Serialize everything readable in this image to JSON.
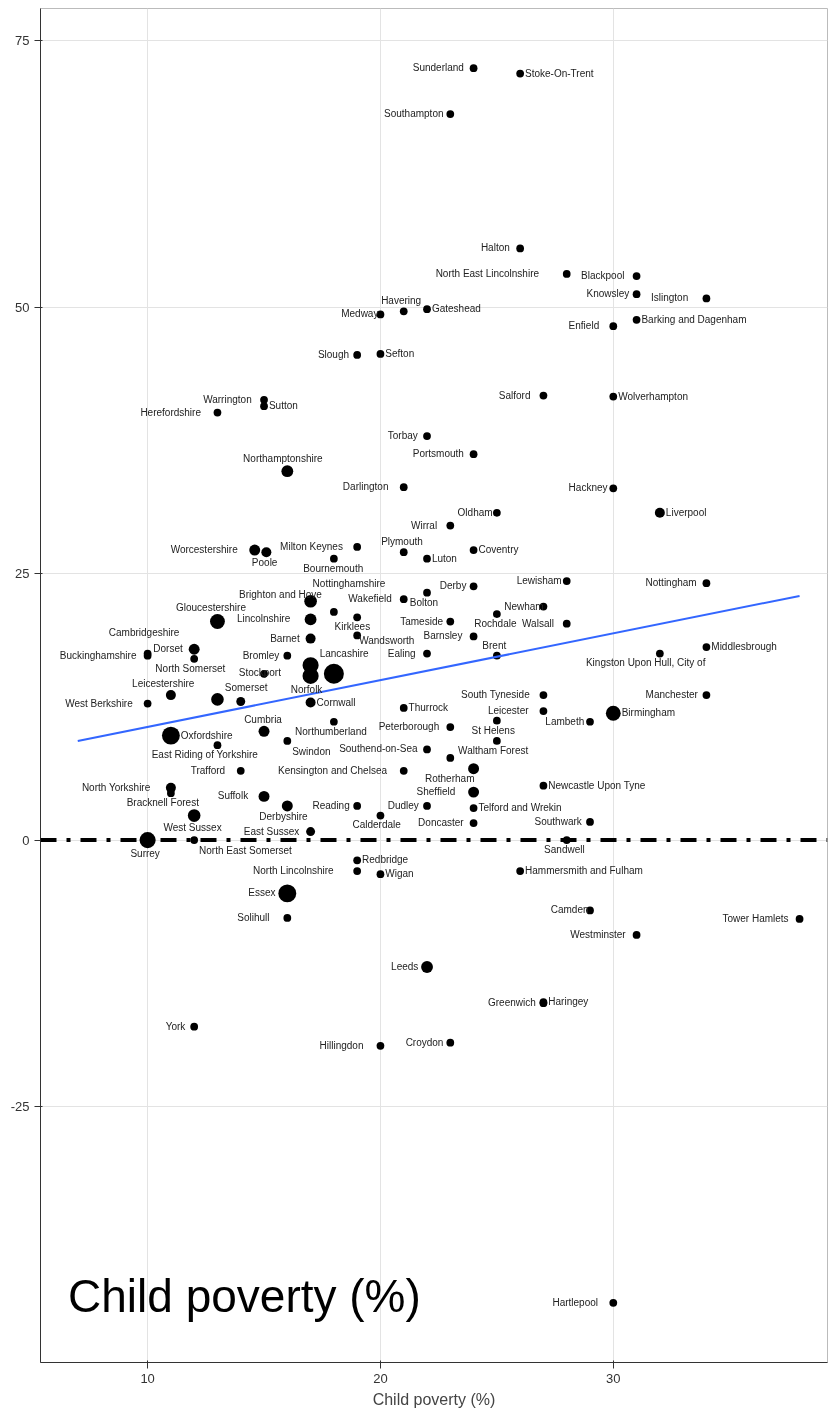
{
  "chart_data": {
    "type": "bubble",
    "xlabel": "Child poverty (%)",
    "xlim": [
      5.4,
      39.2
    ],
    "ylim": [
      -49,
      78
    ],
    "xticks": [
      10,
      20,
      30
    ],
    "yticks": [
      -25,
      0,
      25,
      50,
      75
    ],
    "grid": true,
    "series": [
      {
        "color": "#000000",
        "marker": "circle",
        "x": [
          24,
          26,
          23,
          26,
          28,
          31,
          31,
          34,
          31,
          30,
          22,
          20,
          21,
          19,
          20,
          15,
          15,
          13,
          27,
          30,
          22,
          24,
          16,
          21,
          30,
          32,
          25,
          23,
          24,
          22,
          21,
          19,
          18,
          14.6,
          15.1,
          28,
          34,
          24,
          22,
          21,
          27,
          25,
          23,
          28,
          24,
          22,
          25,
          32,
          34,
          27,
          34,
          30,
          27,
          29,
          25,
          23,
          25,
          22,
          23,
          24,
          27,
          24,
          24,
          22,
          24,
          29,
          28,
          10,
          11,
          13,
          14,
          17,
          21,
          18,
          11,
          13,
          15,
          16,
          14,
          21,
          11,
          11,
          12,
          15,
          16,
          19,
          20,
          17,
          10,
          12,
          12,
          10,
          10,
          12,
          16,
          15,
          17,
          17,
          18,
          13,
          17,
          18,
          19,
          17,
          19,
          17,
          19,
          19,
          20,
          26,
          16,
          16,
          29,
          38,
          31,
          22,
          27,
          27,
          12,
          20,
          23,
          30
        ],
        "values": [
          72.4,
          71.9,
          68.1,
          55.5,
          53.1,
          52.9,
          51.2,
          50.8,
          48.8,
          48.2,
          49.8,
          49.3,
          49.6,
          45.5,
          45.6,
          41.3,
          40.7,
          40.1,
          41.7,
          41.6,
          37.9,
          36.2,
          34.6,
          33.1,
          33.0,
          30.7,
          30.7,
          29.5,
          27.2,
          26.4,
          27.0,
          27.5,
          26.4,
          27.2,
          27.0,
          24.3,
          24.1,
          23.8,
          23.2,
          22.6,
          21.9,
          21.2,
          20.5,
          20.3,
          19.1,
          17.5,
          17.3,
          17.5,
          18.1,
          13.6,
          13.6,
          11.9,
          12.1,
          11.1,
          11.2,
          10.6,
          9.3,
          8.5,
          7.7,
          6.7,
          5.1,
          4.5,
          3.0,
          3.2,
          1.6,
          1.7,
          0,
          12.8,
          13.6,
          13.2,
          13.0,
          12.9,
          12.4,
          11.1,
          9.8,
          8.9,
          10.2,
          9.3,
          6.5,
          6.5,
          4.9,
          4.4,
          2.3,
          4.1,
          3.2,
          3.2,
          2.3,
          0.8,
          0,
          0,
          17.9,
          17.3,
          17.5,
          17.0,
          17.3,
          15.6,
          16.4,
          15.4,
          15.6,
          20.5,
          20.7,
          21.4,
          20.9,
          22.4,
          19.2,
          18.9,
          -1.9,
          -2.9,
          -3.2,
          -2.9,
          -5.0,
          -7.3,
          -6.6,
          -7.4,
          -8.9,
          -11.9,
          -15.3,
          -15.2,
          -17.5,
          -19.3,
          -19.0,
          -43.4
        ],
        "sizes": [
          0.15,
          0.15,
          0.15,
          0.15,
          0.15,
          0.15,
          0.15,
          0.15,
          0.15,
          0.15,
          0.15,
          0.15,
          0.15,
          0.15,
          0.15,
          0.15,
          0.15,
          0.15,
          0.15,
          0.15,
          0.15,
          0.15,
          0.35,
          0.15,
          0.15,
          0.25,
          0.15,
          0.15,
          0.15,
          0.15,
          0.15,
          0.15,
          0.15,
          0.3,
          0.25,
          0.15,
          0.15,
          0.15,
          0.15,
          0.15,
          0.15,
          0.15,
          0.15,
          0.15,
          0.15,
          0.15,
          0.15,
          0.15,
          0.15,
          0.15,
          0.15,
          0.55,
          0.15,
          0.15,
          0.15,
          0.15,
          0.15,
          0.15,
          0.15,
          0.3,
          0.15,
          0.3,
          0.15,
          0.15,
          0.15,
          0.15,
          0.15,
          0.15,
          0.25,
          0.4,
          0.2,
          0.25,
          0.15,
          0.15,
          0.8,
          0.15,
          0.3,
          0.15,
          0.15,
          0.15,
          0.25,
          0.15,
          0.4,
          0.3,
          0.3,
          0.15,
          0.15,
          0.2,
          0.65,
          0.15,
          0.3,
          0.15,
          0.15,
          0.15,
          0.15,
          0.15,
          0.65,
          0.65,
          1,
          0.55,
          0.35,
          0.15,
          0.15,
          0.4,
          0.15,
          0.25,
          0.15,
          0.15,
          0.15,
          0.15,
          0.8,
          0.15,
          0.15,
          0.15,
          0.15,
          0.35,
          0.15,
          0.15,
          0.15,
          0.15,
          0.15,
          0.15
        ]
      },
      {
        "type": "line",
        "color": "#3366ff",
        "x": [
          7,
          38
        ],
        "values": [
          9.3,
          22.9
        ]
      }
    ],
    "ref_lines": [
      {
        "axis": "y",
        "value": 0,
        "color": "#000000",
        "line_style": "dashed"
      }
    ],
    "annotations": [
      {
        "text": "Sunderland",
        "x": 24,
        "y": 72.4
      },
      {
        "text": "Stoke-On-Trent",
        "x": 26,
        "y": 71.9
      },
      {
        "text": "Southampton",
        "x": 23,
        "y": 68.1
      },
      {
        "text": "Halton",
        "x": 26,
        "y": 55.5
      },
      {
        "text": "North East Lincolnshire",
        "x": 28,
        "y": 53.1
      },
      {
        "text": "Blackpool",
        "x": 31,
        "y": 52.9
      },
      {
        "text": "Knowsley",
        "x": 31,
        "y": 51.2
      },
      {
        "text": "Islington",
        "x": 34,
        "y": 50.8
      },
      {
        "text": "Barking and Dagenham",
        "x": 31,
        "y": 48.8
      },
      {
        "text": "Enfield",
        "x": 30,
        "y": 48.2
      },
      {
        "text": "Gateshead",
        "x": 22,
        "y": 49.8
      },
      {
        "text": "Medway",
        "x": 20,
        "y": 49.3
      },
      {
        "text": "Havering",
        "x": 21,
        "y": 49.6
      },
      {
        "text": "Slough",
        "x": 19,
        "y": 45.5
      },
      {
        "text": "Sefton",
        "x": 20,
        "y": 45.6
      },
      {
        "text": "Warrington",
        "x": 15,
        "y": 41.3
      },
      {
        "text": "Sutton",
        "x": 15,
        "y": 40.7
      },
      {
        "text": "Herefordshire",
        "x": 13,
        "y": 40.1
      },
      {
        "text": "Salford",
        "x": 27,
        "y": 41.7
      },
      {
        "text": "Wolverhampton",
        "x": 30,
        "y": 41.6
      },
      {
        "text": "Torbay",
        "x": 22,
        "y": 37.9
      },
      {
        "text": "Portsmouth",
        "x": 24,
        "y": 36.2
      },
      {
        "text": "Northamptonshire",
        "x": 16,
        "y": 34.6
      },
      {
        "text": "Darlington",
        "x": 21,
        "y": 33.1
      },
      {
        "text": "Hackney",
        "x": 30,
        "y": 33.0
      },
      {
        "text": "Liverpool",
        "x": 32,
        "y": 30.7
      },
      {
        "text": "Oldham",
        "x": 25,
        "y": 30.7
      },
      {
        "text": "Wirral",
        "x": 23,
        "y": 29.5
      },
      {
        "text": "Coventry",
        "x": 24,
        "y": 27.2
      },
      {
        "text": "Luton",
        "x": 22,
        "y": 26.4
      },
      {
        "text": "Plymouth",
        "x": 21,
        "y": 27.0
      },
      {
        "text": "Milton Keynes",
        "x": 19,
        "y": 27.5
      },
      {
        "text": "Bournemouth",
        "x": 18,
        "y": 26.4
      },
      {
        "text": "Worcestershire",
        "x": 14.6,
        "y": 27.2
      },
      {
        "text": "Poole",
        "x": 15.1,
        "y": 27.0
      },
      {
        "text": "Lewisham",
        "x": 28,
        "y": 24.3
      },
      {
        "text": "Nottingham",
        "x": 34,
        "y": 24.1
      },
      {
        "text": "Derby",
        "x": 24,
        "y": 23.8
      },
      {
        "text": "Bolton",
        "x": 22,
        "y": 23.2
      },
      {
        "text": "Wakefield",
        "x": 21,
        "y": 22.6
      },
      {
        "text": "Newham",
        "x": 27,
        "y": 21.9
      },
      {
        "text": "Rochdale",
        "x": 25,
        "y": 21.2
      },
      {
        "text": "Tameside",
        "x": 23,
        "y": 20.5
      },
      {
        "text": "Walsall",
        "x": 28,
        "y": 20.3
      },
      {
        "text": "Barnsley",
        "x": 24,
        "y": 19.1
      },
      {
        "text": "Ealing",
        "x": 22,
        "y": 17.5
      },
      {
        "text": "Brent",
        "x": 25,
        "y": 17.3
      },
      {
        "text": "Kingston Upon Hull, City of",
        "x": 32,
        "y": 17.5
      },
      {
        "text": "Middlesbrough",
        "x": 34,
        "y": 18.1
      },
      {
        "text": "South Tyneside",
        "x": 27,
        "y": 13.6
      },
      {
        "text": "Manchester",
        "x": 34,
        "y": 13.6
      },
      {
        "text": "Birmingham",
        "x": 30,
        "y": 11.9
      },
      {
        "text": "Leicester",
        "x": 27,
        "y": 12.1
      },
      {
        "text": "Lambeth",
        "x": 29,
        "y": 11.1
      },
      {
        "text": "St Helens",
        "x": 25,
        "y": 11.2
      },
      {
        "text": "Peterborough",
        "x": 23,
        "y": 10.6
      },
      {
        "text": "Waltham Forest",
        "x": 25,
        "y": 9.3
      },
      {
        "text": "Southend-on-Sea",
        "x": 22,
        "y": 8.5
      },
      {
        "text": "Rotherham",
        "x": 23,
        "y": 7.7
      },
      {
        "text": "Newcastle Upon Tyne",
        "x": 27,
        "y": 5.1
      },
      {
        "text": "Sheffield",
        "x": 24,
        "y": 4.5
      },
      {
        "text": "Telford and Wrekin",
        "x": 24,
        "y": 3.0
      },
      {
        "text": "Dudley",
        "x": 22,
        "y": 3.2
      },
      {
        "text": "Doncaster",
        "x": 24,
        "y": 1.6
      },
      {
        "text": "Southwark",
        "x": 29,
        "y": 1.7
      },
      {
        "text": "Sandwell",
        "x": 28,
        "y": 0
      },
      {
        "text": "West Berkshire",
        "x": 10,
        "y": 12.8
      },
      {
        "text": "Leicestershire",
        "x": 11,
        "y": 13.6
      },
      {
        "text": "Somerset",
        "x": 13,
        "y": 13.2
      },
      {
        "text": "Cornwall",
        "x": 17,
        "y": 12.9
      },
      {
        "text": "Thurrock",
        "x": 21,
        "y": 12.4
      },
      {
        "text": "Northumberland",
        "x": 18,
        "y": 11.1
      },
      {
        "text": "Oxfordshire",
        "x": 11,
        "y": 9.8
      },
      {
        "text": "East Riding of Yorkshire",
        "x": 13,
        "y": 8.9
      },
      {
        "text": "Cumbria",
        "x": 15,
        "y": 10.2
      },
      {
        "text": "Swindon",
        "x": 16,
        "y": 9.3
      },
      {
        "text": "Trafford",
        "x": 14,
        "y": 6.5
      },
      {
        "text": "Kensington and Chelsea",
        "x": 21,
        "y": 6.5
      },
      {
        "text": "North Yorkshire",
        "x": 11,
        "y": 4.9
      },
      {
        "text": "Bracknell Forest",
        "x": 11,
        "y": 4.4
      },
      {
        "text": "West Sussex",
        "x": 12,
        "y": 2.3
      },
      {
        "text": "Suffolk",
        "x": 15,
        "y": 4.1
      },
      {
        "text": "Derbyshire",
        "x": 16,
        "y": 3.2
      },
      {
        "text": "Reading",
        "x": 19,
        "y": 3.2
      },
      {
        "text": "Calderdale",
        "x": 20,
        "y": 2.3
      },
      {
        "text": "East Sussex",
        "x": 17,
        "y": 0.8
      },
      {
        "text": "Surrey",
        "x": 10,
        "y": 0
      },
      {
        "text": "North East Somerset",
        "x": 12,
        "y": 0
      },
      {
        "text": "Dorset",
        "x": 12,
        "y": 17.9
      },
      {
        "text": "Buckinghamshire",
        "x": 10,
        "y": 17.3
      },
      {
        "text": "Cambridgeshire",
        "x": 10,
        "y": 17.5
      },
      {
        "text": "North Somerset",
        "x": 12,
        "y": 17.0
      },
      {
        "text": "Bromley",
        "x": 16,
        "y": 17.3
      },
      {
        "text": "Stockport",
        "x": 15,
        "y": 15.6
      },
      {
        "text": "Lancashire",
        "x": 17,
        "y": 16.4
      },
      {
        "text": "Norfolk",
        "x": 17,
        "y": 15.4
      },
      {
        "text": "Gloucestershire",
        "x": 13,
        "y": 20.5
      },
      {
        "text": "Lincolnshire",
        "x": 17,
        "y": 20.7
      },
      {
        "text": "Brighton and Hove",
        "x": 18,
        "y": 21.4
      },
      {
        "text": "Kirklees",
        "x": 19,
        "y": 20.9
      },
      {
        "text": "Nottinghamshire",
        "x": 17,
        "y": 22.4
      },
      {
        "text": "Wandsworth",
        "x": 19,
        "y": 19.2
      },
      {
        "text": "Barnet",
        "x": 17,
        "y": 18.9
      },
      {
        "text": "Redbridge",
        "x": 19,
        "y": -1.9
      },
      {
        "text": "North Lincolnshire",
        "x": 19,
        "y": -2.9
      },
      {
        "text": "Wigan",
        "x": 20,
        "y": -3.2
      },
      {
        "text": "Hammersmith and Fulham",
        "x": 26,
        "y": -2.9
      },
      {
        "text": "Essex",
        "x": 16,
        "y": -5.0
      },
      {
        "text": "Solihull",
        "x": 16,
        "y": -7.3
      },
      {
        "text": "Camden",
        "x": 29,
        "y": -6.6
      },
      {
        "text": "Tower Hamlets",
        "x": 38,
        "y": -7.4
      },
      {
        "text": "Westminster",
        "x": 31,
        "y": -8.9
      },
      {
        "text": "Leeds",
        "x": 22,
        "y": -11.9
      },
      {
        "text": "Greenwich",
        "x": 27,
        "y": -15.3
      },
      {
        "text": "Haringey",
        "x": 27,
        "y": -15.2
      },
      {
        "text": "York",
        "x": 12,
        "y": -17.5
      },
      {
        "text": "Hillingdon",
        "x": 20,
        "y": -19.3
      },
      {
        "text": "Croydon",
        "x": 23,
        "y": -19.0
      },
      {
        "text": "Hartlepool",
        "x": 30,
        "y": -43.4
      },
      "Child poverty (%)"
    ]
  }
}
